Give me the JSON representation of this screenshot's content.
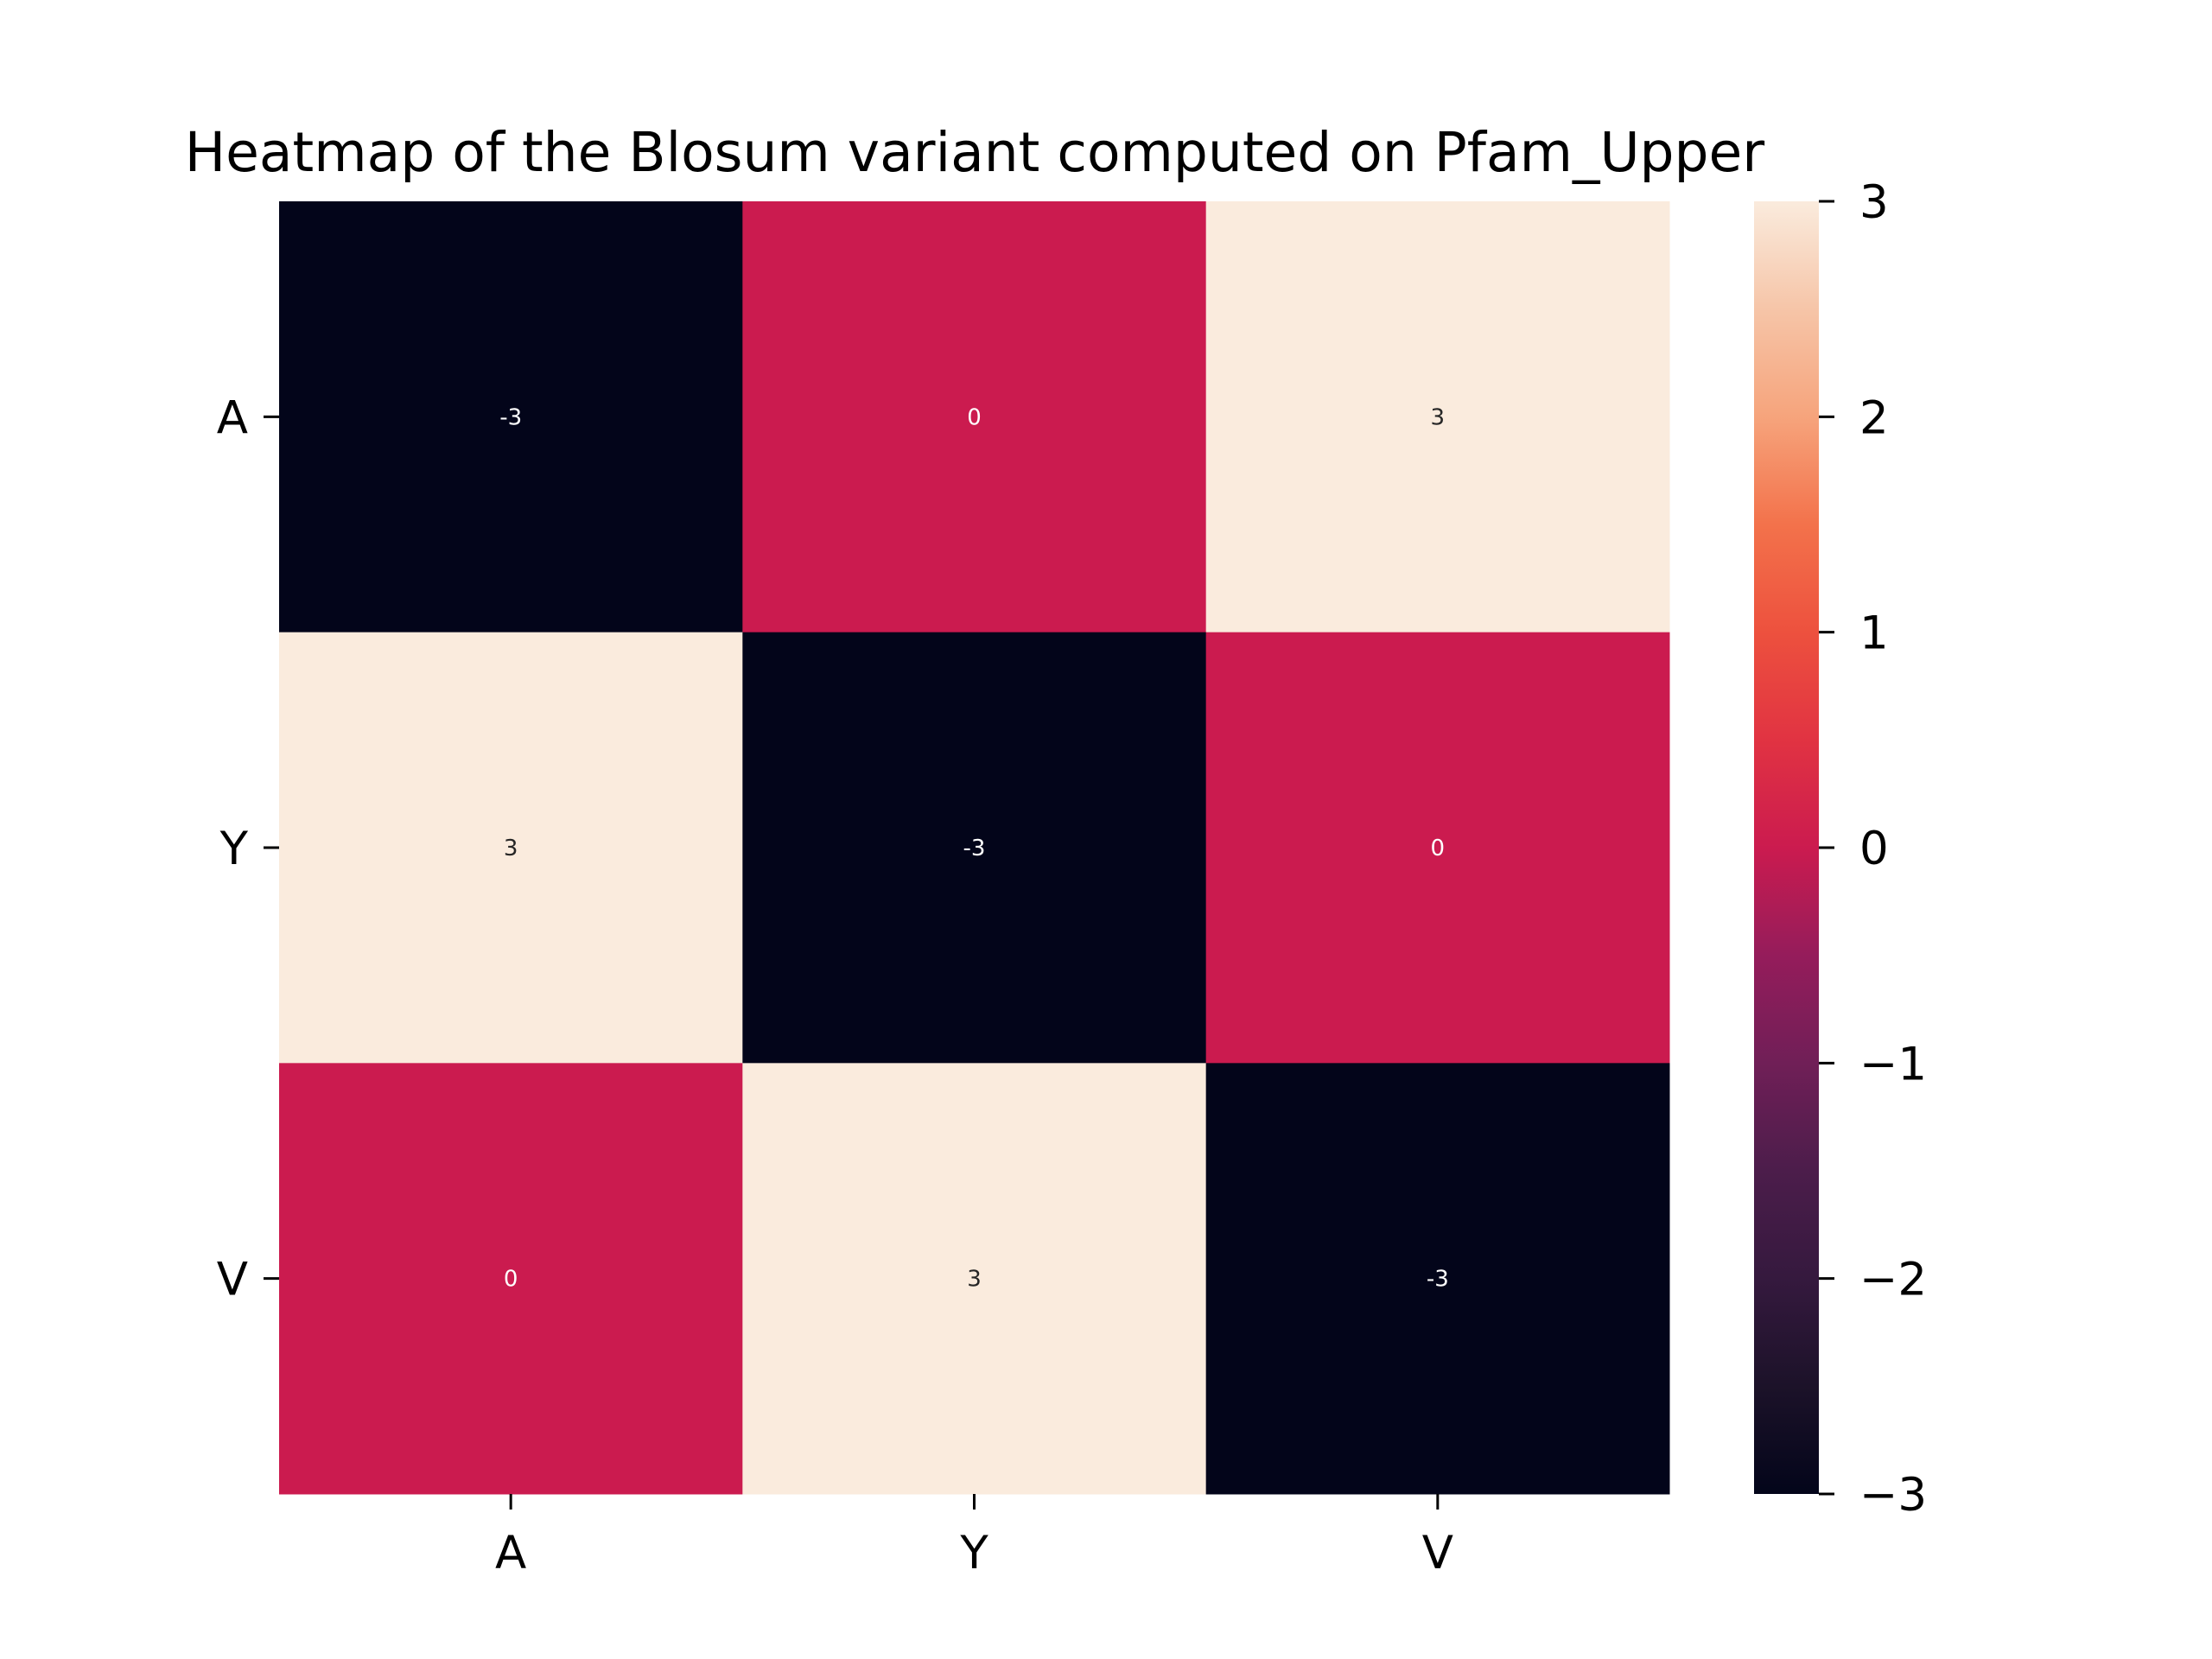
{
  "chart_data": {
    "type": "heatmap",
    "title": "Heatmap of the Blosum variant computed on Pfam_Upper",
    "xlabel": "",
    "ylabel": "",
    "x_categories": [
      "A",
      "Y",
      "V"
    ],
    "y_categories": [
      "A",
      "Y",
      "V"
    ],
    "values": [
      [
        -3,
        0,
        3
      ],
      [
        3,
        -3,
        0
      ],
      [
        0,
        3,
        -3
      ]
    ],
    "cell_labels": [
      [
        "-3",
        "0",
        "3"
      ],
      [
        "3",
        "-3",
        "0"
      ],
      [
        "0",
        "3",
        "-3"
      ]
    ],
    "colorbar": {
      "range": [
        -3,
        3
      ],
      "ticks": [
        3,
        2,
        1,
        0,
        -1,
        -2,
        -3
      ],
      "tick_labels": [
        "3",
        "2",
        "1",
        "0",
        "−1",
        "−2",
        "−3"
      ],
      "colormap": "rocket",
      "low_color": "#03051a",
      "mid_color": "#cb1b4f",
      "high_color": "#faebdd"
    },
    "grid": false
  }
}
